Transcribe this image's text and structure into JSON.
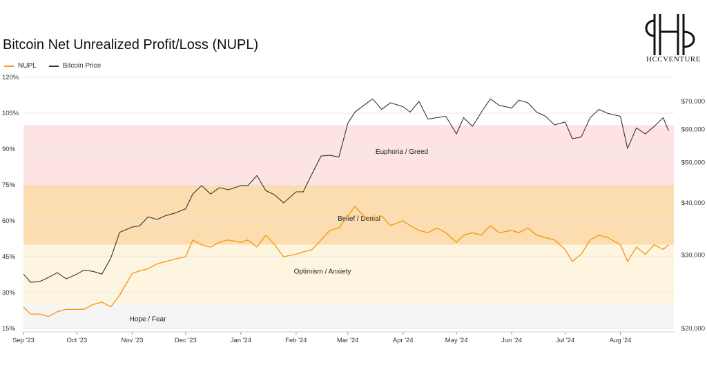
{
  "chart_data": {
    "type": "line",
    "title": "Bitcoin Net Unrealized Profit/Loss (NUPL)",
    "legend": {
      "placement": "top-left",
      "items": [
        {
          "name": "NUPL",
          "color": "#F39C12"
        },
        {
          "name": "Bitcoin Price",
          "color": "#333333"
        }
      ]
    },
    "x_ticks": [
      "Sep '23",
      "Oct '23",
      "Nov '23",
      "Dec '23",
      "Jan '24",
      "Feb '24",
      "Mar '24",
      "Apr '24",
      "May '24",
      "Jun '24",
      "Jul '24",
      "Aug '24"
    ],
    "left_axis": {
      "ticks": [
        "120%",
        "105%",
        "90%",
        "75%",
        "60%",
        "45%",
        "30%",
        "15%"
      ],
      "range": [
        15,
        120
      ]
    },
    "right_axis": {
      "scale": "log",
      "ticks": [
        "$70,000",
        "$60,000",
        "$50,000",
        "$40,000",
        "$30,000",
        "$20,000"
      ],
      "values": [
        70000,
        60000,
        50000,
        40000,
        30000,
        20000
      ]
    },
    "zones": [
      {
        "label": "Euphoria / Greed",
        "from": 75,
        "to": 100,
        "color": "#FDE3E3"
      },
      {
        "label": "Belief / Denial",
        "from": 50,
        "to": 75,
        "color": "#FCDDB0"
      },
      {
        "label": "Optimism / Anxiety",
        "from": 25,
        "to": 50,
        "color": "#FEF5E1"
      },
      {
        "label": "Hope / Fear",
        "from": 15,
        "to": 25,
        "color": "#F5F5F5"
      }
    ],
    "series": [
      {
        "name": "NUPL",
        "color": "#F39C12",
        "x": [
          "2023-09-01",
          "2023-09-05",
          "2023-09-10",
          "2023-09-15",
          "2023-09-20",
          "2023-09-25",
          "2023-10-01",
          "2023-10-05",
          "2023-10-10",
          "2023-10-15",
          "2023-10-20",
          "2023-10-25",
          "2023-11-01",
          "2023-11-05",
          "2023-11-10",
          "2023-11-15",
          "2023-11-20",
          "2023-11-25",
          "2023-12-01",
          "2023-12-05",
          "2023-12-10",
          "2023-12-15",
          "2023-12-20",
          "2023-12-25",
          "2024-01-01",
          "2024-01-05",
          "2024-01-10",
          "2024-01-15",
          "2024-01-20",
          "2024-01-25",
          "2024-02-01",
          "2024-02-05",
          "2024-02-10",
          "2024-02-15",
          "2024-02-20",
          "2024-02-25",
          "2024-03-01",
          "2024-03-05",
          "2024-03-10",
          "2024-03-15",
          "2024-03-20",
          "2024-03-25",
          "2024-04-01",
          "2024-04-05",
          "2024-04-10",
          "2024-04-15",
          "2024-04-20",
          "2024-04-25",
          "2024-05-01",
          "2024-05-05",
          "2024-05-10",
          "2024-05-15",
          "2024-05-20",
          "2024-05-25",
          "2024-06-01",
          "2024-06-05",
          "2024-06-10",
          "2024-06-15",
          "2024-06-20",
          "2024-06-25",
          "2024-07-01",
          "2024-07-05",
          "2024-07-10",
          "2024-07-15",
          "2024-07-20",
          "2024-07-25",
          "2024-08-01",
          "2024-08-05",
          "2024-08-10",
          "2024-08-15",
          "2024-08-20",
          "2024-08-25",
          "2024-08-28"
        ],
        "values": [
          24,
          21,
          21,
          20,
          22,
          23,
          23,
          23,
          25,
          26,
          24,
          29,
          38,
          39,
          40,
          42,
          43,
          44,
          45,
          52,
          50,
          49,
          51,
          52,
          51,
          52,
          49,
          54,
          50,
          45,
          46,
          47,
          48,
          52,
          56,
          57,
          62,
          66,
          62,
          60,
          62,
          58,
          60,
          58,
          56,
          55,
          57,
          55,
          51,
          54,
          55,
          54,
          58,
          55,
          56,
          55,
          57,
          54,
          53,
          52,
          48,
          43,
          46,
          52,
          54,
          53,
          50,
          43,
          49,
          46,
          50,
          48,
          50
        ]
      },
      {
        "name": "Bitcoin Price",
        "color": "#333333",
        "x": [
          "2023-09-01",
          "2023-09-05",
          "2023-09-10",
          "2023-09-15",
          "2023-09-20",
          "2023-09-25",
          "2023-10-01",
          "2023-10-05",
          "2023-10-10",
          "2023-10-15",
          "2023-10-20",
          "2023-10-25",
          "2023-11-01",
          "2023-11-05",
          "2023-11-10",
          "2023-11-15",
          "2023-11-20",
          "2023-11-25",
          "2023-12-01",
          "2023-12-05",
          "2023-12-10",
          "2023-12-15",
          "2023-12-20",
          "2023-12-25",
          "2024-01-01",
          "2024-01-05",
          "2024-01-10",
          "2024-01-15",
          "2024-01-20",
          "2024-01-25",
          "2024-02-01",
          "2024-02-05",
          "2024-02-10",
          "2024-02-15",
          "2024-02-20",
          "2024-02-25",
          "2024-03-01",
          "2024-03-05",
          "2024-03-10",
          "2024-03-15",
          "2024-03-20",
          "2024-03-25",
          "2024-04-01",
          "2024-04-05",
          "2024-04-10",
          "2024-04-15",
          "2024-04-20",
          "2024-04-25",
          "2024-05-01",
          "2024-05-05",
          "2024-05-10",
          "2024-05-15",
          "2024-05-20",
          "2024-05-25",
          "2024-06-01",
          "2024-06-05",
          "2024-06-10",
          "2024-06-15",
          "2024-06-20",
          "2024-06-25",
          "2024-07-01",
          "2024-07-05",
          "2024-07-10",
          "2024-07-15",
          "2024-07-20",
          "2024-07-25",
          "2024-08-01",
          "2024-08-05",
          "2024-08-10",
          "2024-08-15",
          "2024-08-20",
          "2024-08-25",
          "2024-08-28"
        ],
        "values": [
          27000,
          25800,
          25900,
          26500,
          27200,
          26300,
          27000,
          27600,
          27400,
          27000,
          29500,
          34000,
          35000,
          35200,
          37000,
          36500,
          37300,
          37800,
          38700,
          42000,
          44000,
          42000,
          43500,
          43000,
          44000,
          44000,
          46500,
          42800,
          41800,
          40000,
          42500,
          42500,
          47000,
          51800,
          52000,
          51500,
          62000,
          66000,
          68500,
          71000,
          67000,
          69500,
          68000,
          66000,
          70000,
          63500,
          64000,
          64500,
          58500,
          64000,
          61000,
          66000,
          71000,
          68500,
          67500,
          70500,
          69500,
          66000,
          64500,
          61500,
          62500,
          57000,
          57500,
          64000,
          67000,
          65500,
          64500,
          54000,
          60500,
          58500,
          61000,
          64000,
          59500
        ]
      }
    ]
  },
  "logo": {
    "text": "HCCVENTURE"
  }
}
